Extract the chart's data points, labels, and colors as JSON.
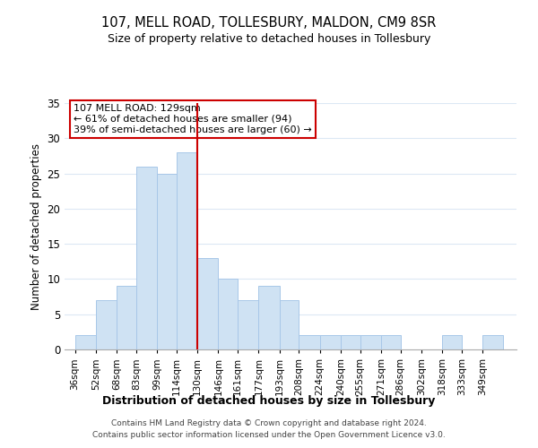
{
  "title": "107, MELL ROAD, TOLLESBURY, MALDON, CM9 8SR",
  "subtitle": "Size of property relative to detached houses in Tollesbury",
  "xlabel": "Distribution of detached houses by size in Tollesbury",
  "ylabel": "Number of detached properties",
  "bin_labels": [
    "36sqm",
    "52sqm",
    "68sqm",
    "83sqm",
    "99sqm",
    "114sqm",
    "130sqm",
    "146sqm",
    "161sqm",
    "177sqm",
    "193sqm",
    "208sqm",
    "224sqm",
    "240sqm",
    "255sqm",
    "271sqm",
    "286sqm",
    "302sqm",
    "318sqm",
    "333sqm",
    "349sqm"
  ],
  "bin_edges": [
    36,
    52,
    68,
    83,
    99,
    114,
    130,
    146,
    161,
    177,
    193,
    208,
    224,
    240,
    255,
    271,
    286,
    302,
    318,
    333,
    349,
    365
  ],
  "counts": [
    2,
    7,
    9,
    26,
    25,
    28,
    13,
    10,
    7,
    9,
    7,
    2,
    2,
    2,
    2,
    2,
    0,
    0,
    2,
    0,
    2
  ],
  "bar_color": "#cfe2f3",
  "bar_edgecolor": "#a8c7e8",
  "vline_x": 130,
  "vline_color": "#cc0000",
  "ylim": [
    0,
    35
  ],
  "yticks": [
    0,
    5,
    10,
    15,
    20,
    25,
    30,
    35
  ],
  "annotation_title": "107 MELL ROAD: 129sqm",
  "annotation_line1": "← 61% of detached houses are smaller (94)",
  "annotation_line2": "39% of semi-detached houses are larger (60) →",
  "annotation_box_edgecolor": "#cc0000",
  "footer_line1": "Contains HM Land Registry data © Crown copyright and database right 2024.",
  "footer_line2": "Contains public sector information licensed under the Open Government Licence v3.0.",
  "background_color": "#ffffff",
  "grid_color": "#dce8f4"
}
